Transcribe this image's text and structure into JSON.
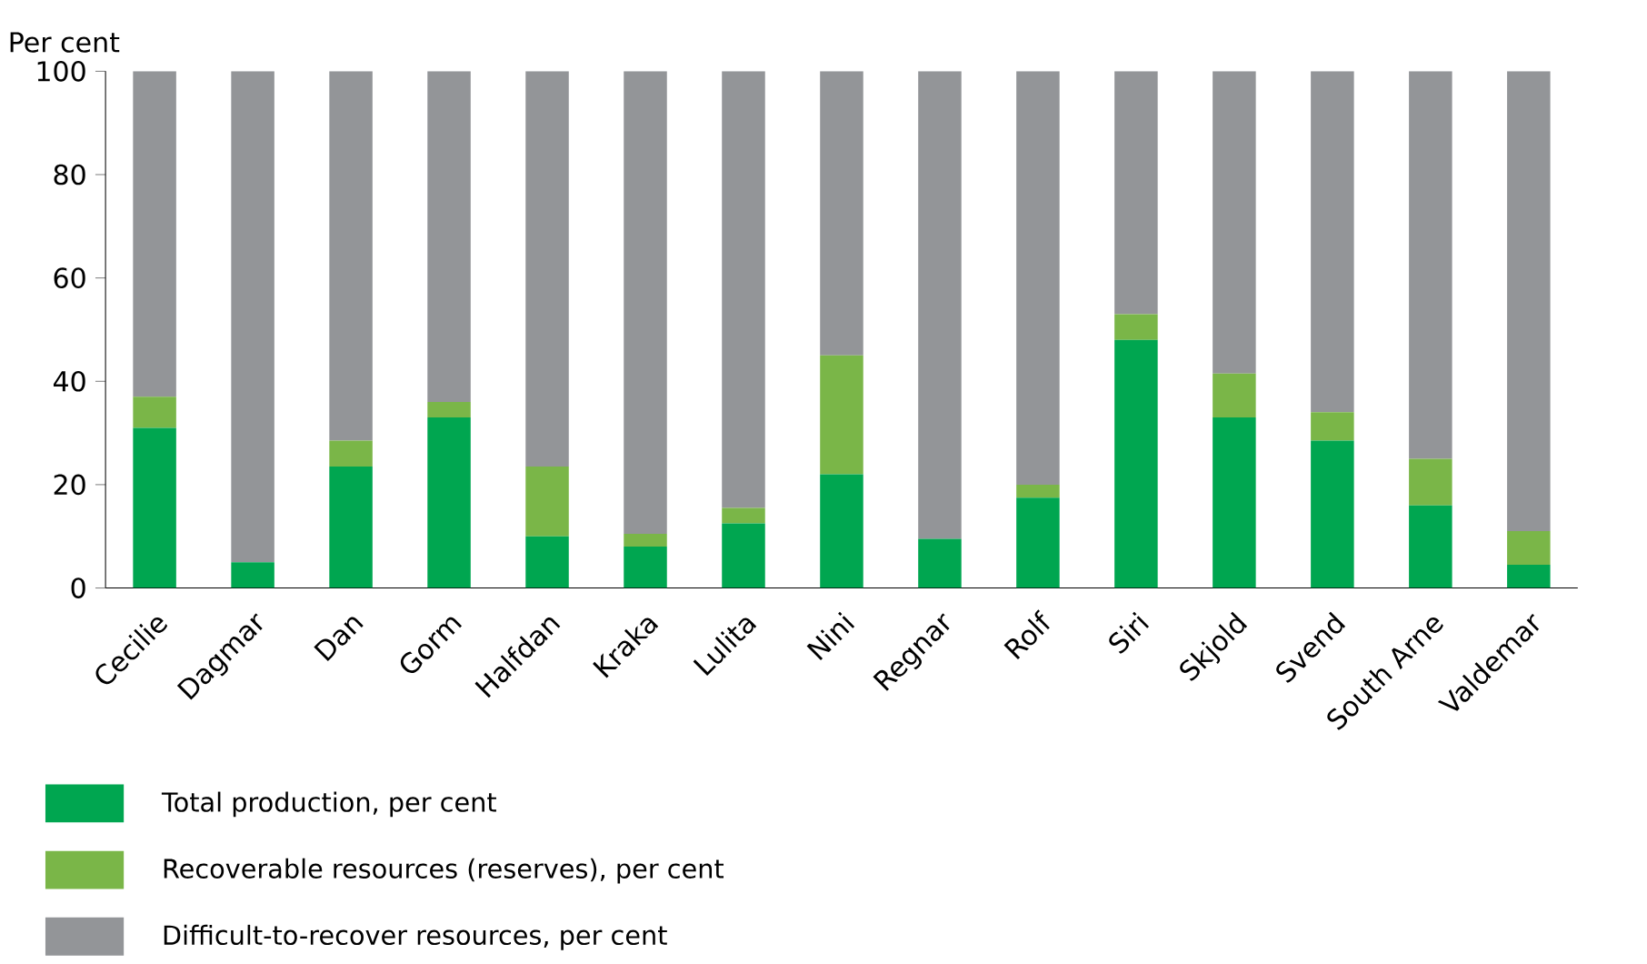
{
  "chart_data": {
    "type": "bar",
    "stacked": true,
    "ylabel": "Per cent",
    "legend": "bottom",
    "categories": [
      "Cecilie",
      "Dagmar",
      "Dan",
      "Gorm",
      "Halfdan",
      "Kraka",
      "Lulita",
      "Nini",
      "Regnar",
      "Rolf",
      "Siri",
      "Skjold",
      "Svend",
      "South Arne",
      "Valdemar"
    ],
    "series": [
      {
        "name": "Total production, per cent",
        "color": "#00a650",
        "values": [
          31,
          5,
          23.5,
          33,
          10,
          8,
          12.5,
          22,
          9.5,
          17.5,
          48,
          33,
          28.5,
          16,
          4.5
        ]
      },
      {
        "name": "Recoverable resources (reserves), per cent",
        "color": "#7ab648",
        "values": [
          6,
          0,
          5,
          3,
          13.5,
          2.5,
          3,
          23,
          0,
          2.5,
          5,
          8.5,
          5.5,
          9,
          6.5
        ]
      },
      {
        "name": "Difficult-to-recover resources, per cent",
        "color": "#939598",
        "values": [
          63,
          95,
          71.5,
          64,
          76.5,
          89.5,
          84.5,
          55,
          90.5,
          80,
          47,
          58.5,
          66,
          75,
          89
        ]
      }
    ],
    "ylim": [
      0,
      100
    ],
    "yticks": [
      0,
      20,
      40,
      60,
      80,
      100
    ]
  }
}
